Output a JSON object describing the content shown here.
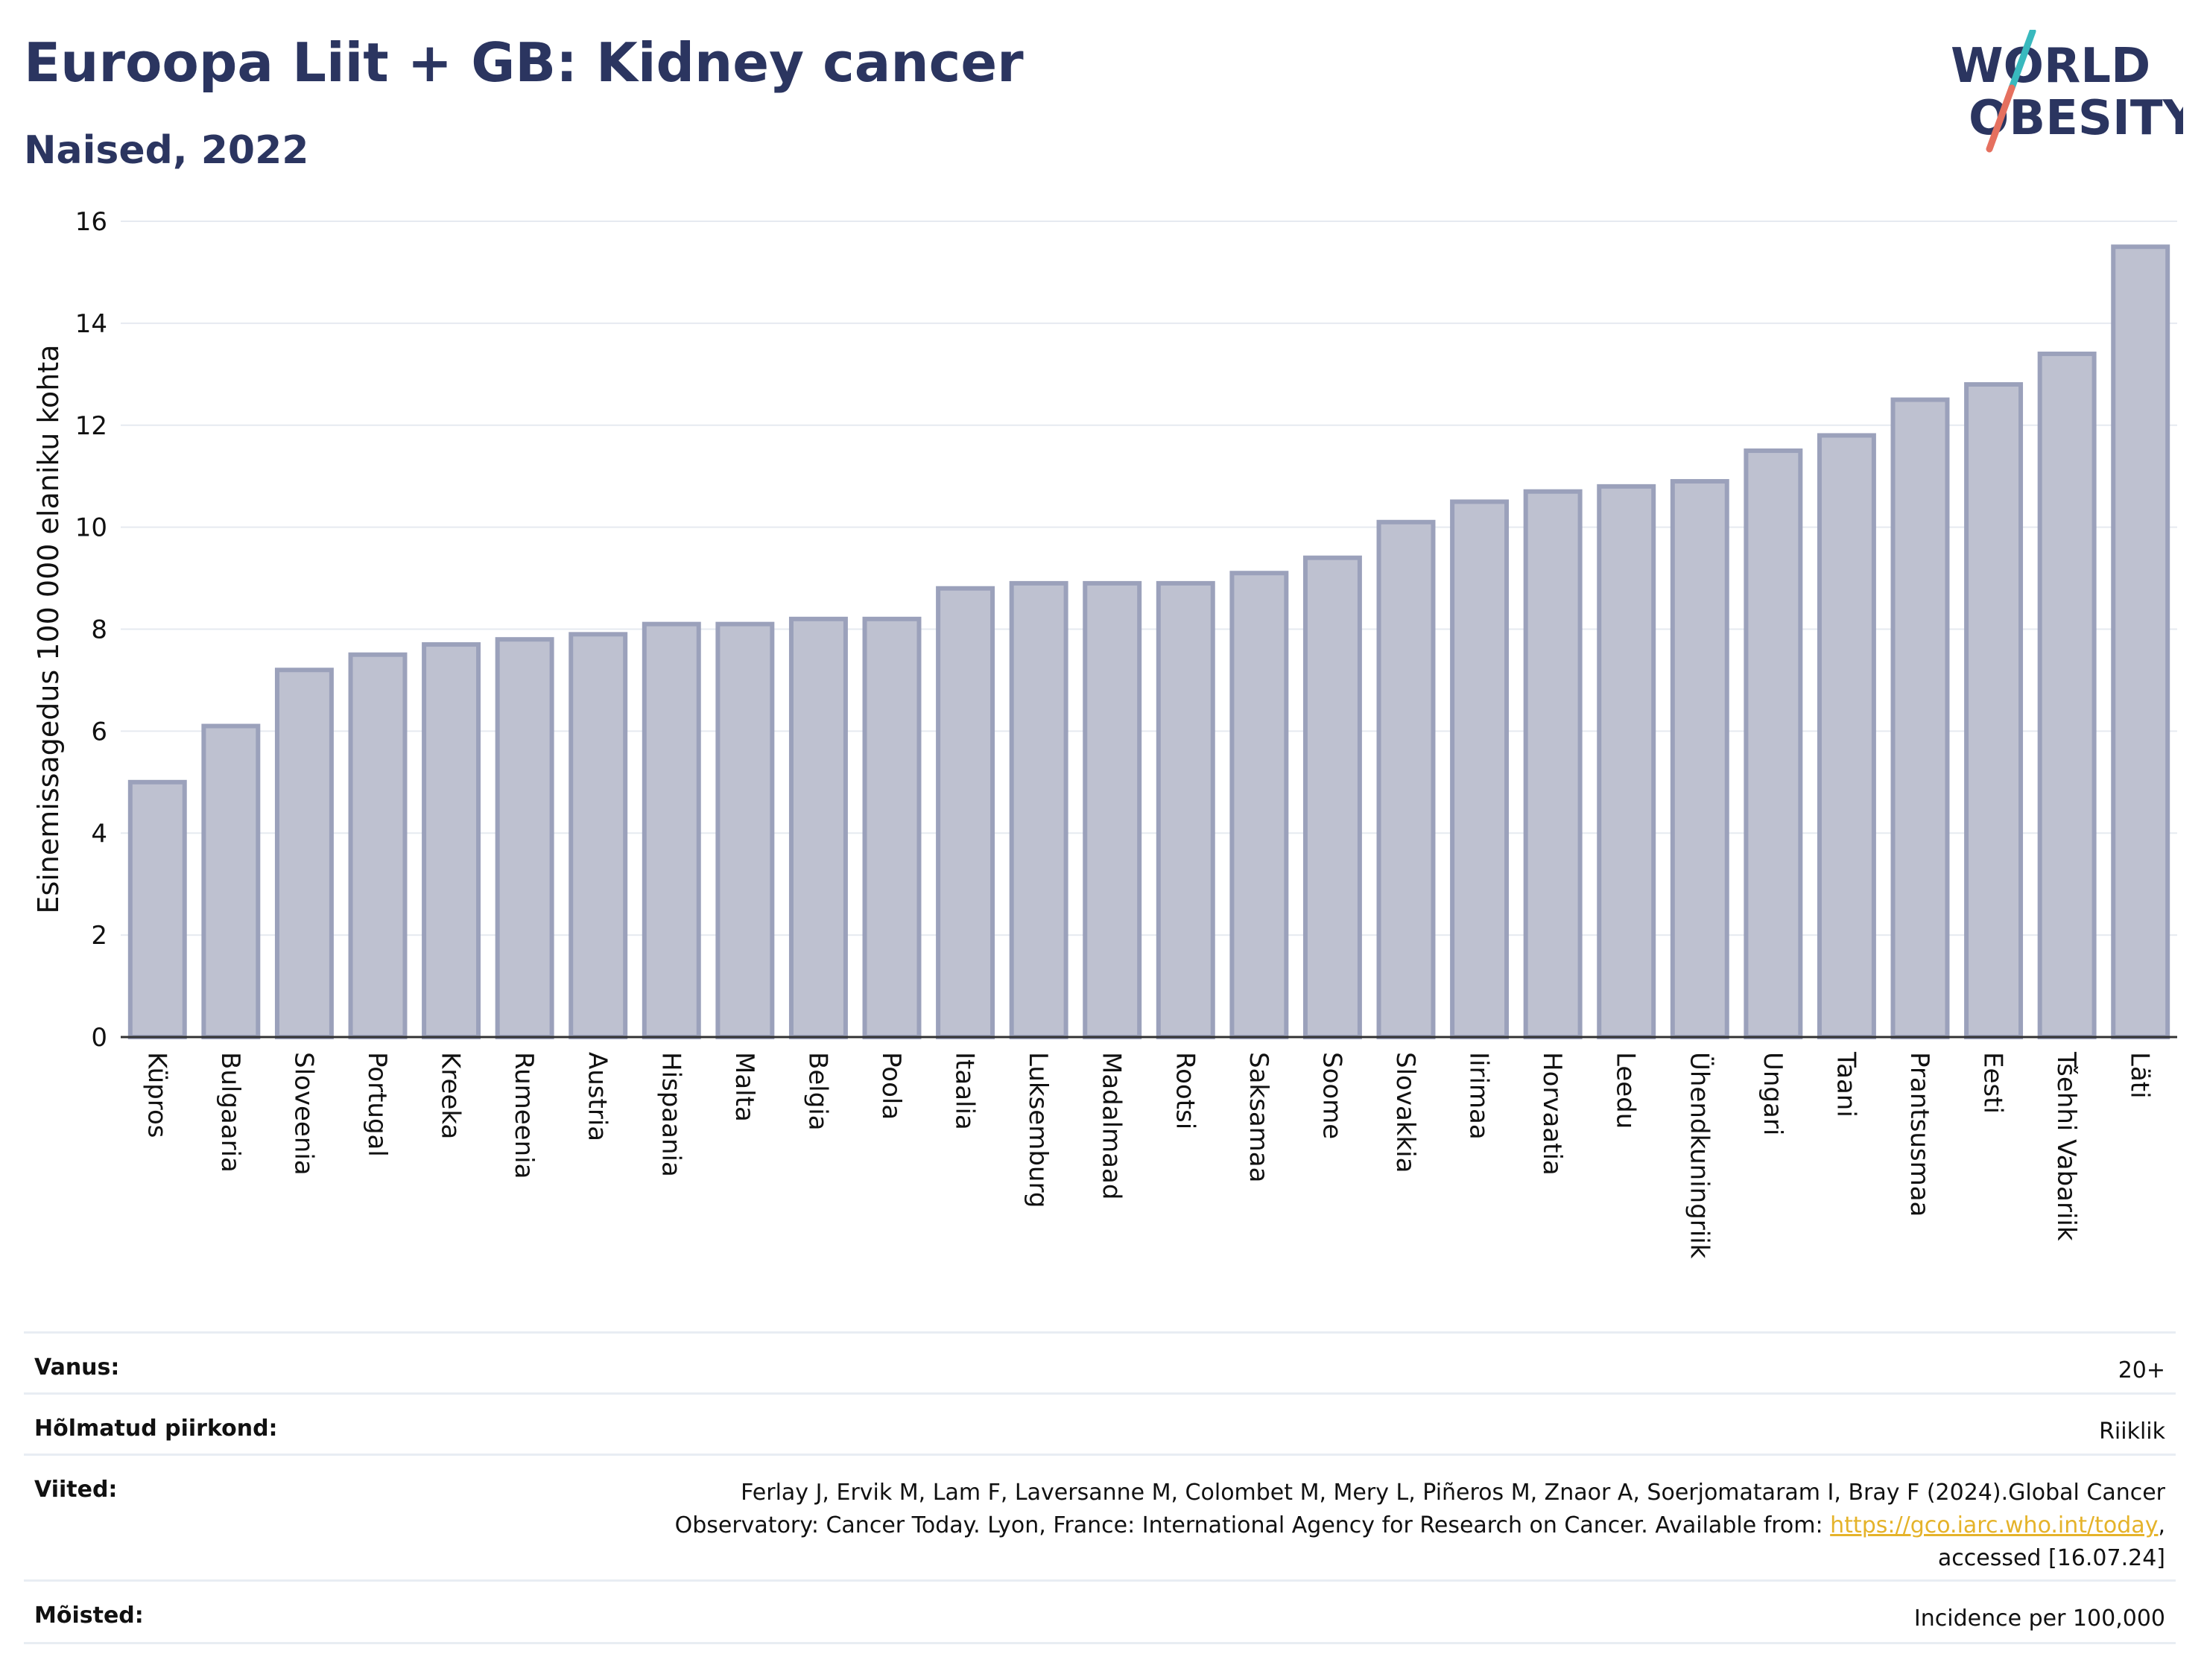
{
  "header": {
    "title": "Euroopa Liit + GB: Kidney cancer",
    "subtitle": "Naised, 2022",
    "logo_line1": "WORLD",
    "logo_line2": "OBESITY"
  },
  "colors": {
    "bar_fill": "#bec1d0",
    "bar_stroke": "#9ba1bb",
    "text": "#2b3560",
    "grid": "#e6eaf0",
    "logo_slash_teal": "#39b9be",
    "logo_slash_red": "#e5705f",
    "link": "#e5b32a"
  },
  "chart_data": {
    "type": "bar",
    "ylabel": "Esinemissagedus 100 000 elaniku kohta",
    "ylim": [
      0,
      16
    ],
    "yticks": [
      0,
      2,
      4,
      6,
      8,
      10,
      12,
      14,
      16
    ],
    "grid": true,
    "categories": [
      "Küpros",
      "Bulgaaria",
      "Sloveenia",
      "Portugal",
      "Kreeka",
      "Rumeenia",
      "Austria",
      "Hispaania",
      "Malta",
      "Belgia",
      "Poola",
      "Itaalia",
      "Luksemburg",
      "Madalmaad",
      "Rootsi",
      "Saksamaa",
      "Soome",
      "Slovakkia",
      "Iirimaa",
      "Horvaatia",
      "Leedu",
      "Ühendkuningriik",
      "Ungari",
      "Taani",
      "Prantsusmaa",
      "Eesti",
      "Tšehhi Vabariik",
      "Läti"
    ],
    "values": [
      5.0,
      6.1,
      7.2,
      7.5,
      7.7,
      7.8,
      7.9,
      8.1,
      8.1,
      8.2,
      8.2,
      8.8,
      8.9,
      8.9,
      8.9,
      9.1,
      9.4,
      10.1,
      10.5,
      10.7,
      10.8,
      10.9,
      11.5,
      11.8,
      12.5,
      12.8,
      13.4,
      15.5
    ]
  },
  "meta": {
    "age_label": "Vanus:",
    "age_value": "20+",
    "regions_label": "Hõlmatud piirkond:",
    "regions_value": "Riiklik",
    "refs_label": "Viited:",
    "refs_line1": "Ferlay J, Ervik M, Lam F, Laversanne M, Colombet M, Mery L, Piñeros M, Znaor A, Soerjomataram I, Bray F (2024).Global Cancer",
    "refs_line2": "Observatory: Cancer Today. Lyon, France: International Agency for Research on Cancer. Available from: ",
    "refs_link": "https://gco.iarc.who.int/today",
    "refs_after_link": ",",
    "refs_line3": "accessed [16.07.24]",
    "defs_label": "Mõisted:",
    "defs_value": "Incidence per 100,000"
  }
}
